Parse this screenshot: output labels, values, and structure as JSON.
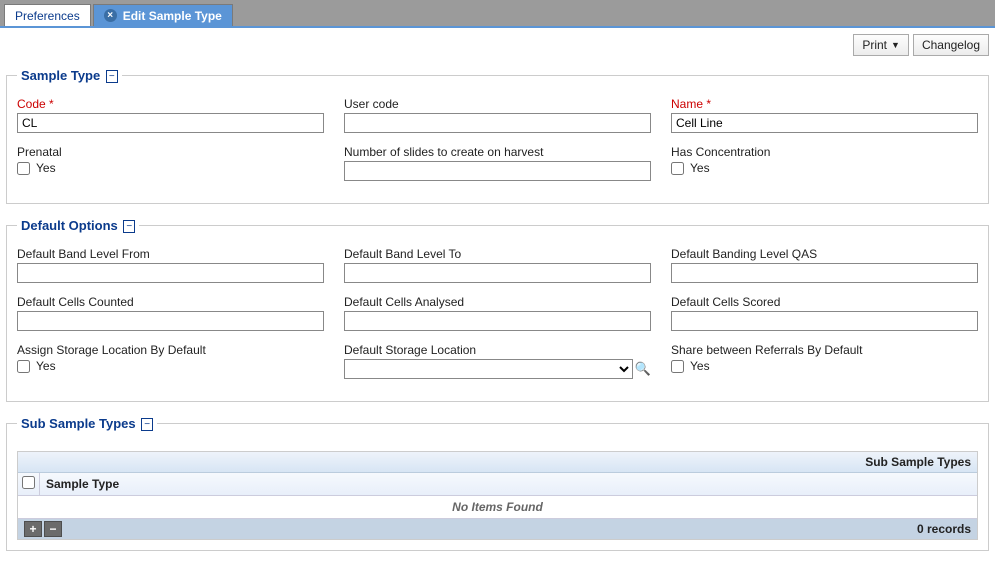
{
  "tabs": {
    "inactive": "Preferences",
    "active": "Edit Sample Type"
  },
  "toolbar": {
    "print": "Print",
    "changelog": "Changelog"
  },
  "sampleType": {
    "legend": "Sample Type",
    "code": {
      "label": "Code *",
      "value": "CL"
    },
    "userCode": {
      "label": "User code",
      "value": ""
    },
    "name": {
      "label": "Name *",
      "value": "Cell Line"
    },
    "prenatal": {
      "label": "Prenatal",
      "yes": "Yes"
    },
    "numSlides": {
      "label": "Number of slides to create on harvest",
      "value": ""
    },
    "hasConc": {
      "label": "Has Concentration",
      "yes": "Yes"
    }
  },
  "defaults": {
    "legend": "Default Options",
    "bandFrom": {
      "label": "Default Band Level From",
      "value": ""
    },
    "bandTo": {
      "label": "Default Band Level To",
      "value": ""
    },
    "bandQAS": {
      "label": "Default Banding Level QAS",
      "value": ""
    },
    "cellsCounted": {
      "label": "Default Cells Counted",
      "value": ""
    },
    "cellsAnalysed": {
      "label": "Default Cells Analysed",
      "value": ""
    },
    "cellsScored": {
      "label": "Default Cells Scored",
      "value": ""
    },
    "assignStorage": {
      "label": "Assign Storage Location By Default",
      "yes": "Yes"
    },
    "storageLoc": {
      "label": "Default Storage Location",
      "value": ""
    },
    "shareReferrals": {
      "label": "Share between Referrals By Default",
      "yes": "Yes"
    }
  },
  "subTypes": {
    "legend": "Sub Sample Types",
    "header": "Sub Sample Types",
    "colSampleType": "Sample Type",
    "empty": "No Items Found",
    "records": "0 records"
  }
}
